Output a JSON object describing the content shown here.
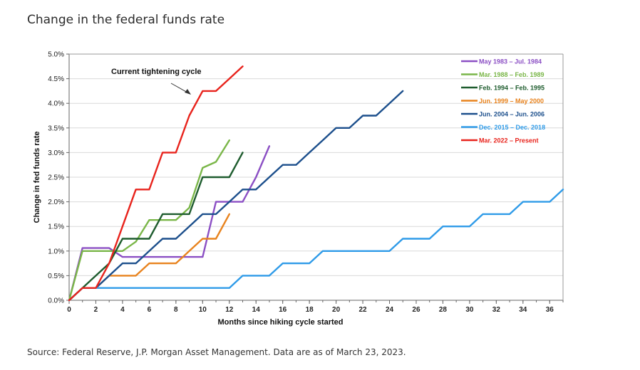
{
  "page": {
    "title": "Change in the federal funds rate",
    "source": "Source: Federal Reserve, J.P. Morgan Asset Management. Data are as of March 23, 2023."
  },
  "chart_data": {
    "type": "line",
    "xlabel": "Months since hiking cycle started",
    "ylabel": "Change in fed funds rate",
    "xlim": [
      0,
      37
    ],
    "ylim": [
      0,
      5
    ],
    "xticks": [
      0,
      2,
      4,
      6,
      8,
      10,
      12,
      14,
      16,
      18,
      20,
      22,
      24,
      26,
      28,
      30,
      32,
      34,
      36
    ],
    "yticks": [
      "0.0%",
      "0.5%",
      "1.0%",
      "1.5%",
      "2.0%",
      "2.5%",
      "3.0%",
      "3.5%",
      "4.0%",
      "4.5%",
      "5.0%"
    ],
    "grid": "horizontal",
    "legend_position": "top-right",
    "annotation": {
      "text": "Current tightening cycle",
      "points_to_series": "Mar. 2022 – Present"
    },
    "series": [
      {
        "name": "May 1983 – Jul. 1984",
        "color": "#8b4fc4",
        "x": [
          0,
          1,
          2,
          3,
          4,
          5,
          6,
          7,
          8,
          9,
          10,
          11,
          12,
          13,
          14,
          15
        ],
        "y": [
          0,
          1.06,
          1.06,
          1.06,
          0.88,
          0.88,
          0.88,
          0.88,
          0.88,
          0.88,
          0.88,
          2.0,
          2.0,
          2.0,
          2.5,
          3.13
        ]
      },
      {
        "name": "Mar. 1988 – Feb. 1989",
        "color": "#7ab648",
        "x": [
          0,
          1,
          2,
          3,
          4,
          5,
          6,
          7,
          8,
          9,
          10,
          11,
          12
        ],
        "y": [
          0,
          1.0,
          1.0,
          1.0,
          1.0,
          1.19,
          1.63,
          1.63,
          1.63,
          1.88,
          2.69,
          2.81,
          3.25
        ]
      },
      {
        "name": "Feb. 1994 – Feb. 1995",
        "color": "#1e5c2e",
        "x": [
          0,
          1,
          2,
          3,
          4,
          5,
          6,
          7,
          8,
          9,
          10,
          11,
          12,
          13
        ],
        "y": [
          0,
          0.25,
          0.5,
          0.75,
          1.25,
          1.25,
          1.25,
          1.75,
          1.75,
          1.75,
          2.5,
          2.5,
          2.5,
          3.0
        ]
      },
      {
        "name": "Jun. 1999 – May 2000",
        "color": "#e8831e",
        "x": [
          0,
          1,
          2,
          3,
          4,
          5,
          6,
          7,
          8,
          9,
          10,
          11,
          12
        ],
        "y": [
          0,
          0.25,
          0.25,
          0.5,
          0.5,
          0.5,
          0.75,
          0.75,
          0.75,
          1.0,
          1.25,
          1.25,
          1.75
        ]
      },
      {
        "name": "Jun. 2004 – Jun. 2006",
        "color": "#1c4f8c",
        "x": [
          0,
          1,
          2,
          3,
          4,
          5,
          6,
          7,
          8,
          9,
          10,
          11,
          12,
          13,
          14,
          15,
          16,
          17,
          18,
          19,
          20,
          21,
          22,
          23,
          24,
          25
        ],
        "y": [
          0,
          0.25,
          0.25,
          0.5,
          0.75,
          0.75,
          1.0,
          1.25,
          1.25,
          1.5,
          1.75,
          1.75,
          2.0,
          2.25,
          2.25,
          2.5,
          2.75,
          2.75,
          3.0,
          3.25,
          3.5,
          3.5,
          3.75,
          3.75,
          4.0,
          4.25
        ]
      },
      {
        "name": "Dec. 2015 – Dec. 2018",
        "color": "#2f9be8",
        "x": [
          0,
          1,
          2,
          3,
          4,
          5,
          6,
          7,
          8,
          9,
          10,
          11,
          12,
          13,
          14,
          15,
          16,
          17,
          18,
          19,
          20,
          21,
          22,
          23,
          24,
          25,
          26,
          27,
          28,
          29,
          30,
          31,
          32,
          33,
          34,
          35,
          36,
          37
        ],
        "y": [
          0,
          0.25,
          0.25,
          0.25,
          0.25,
          0.25,
          0.25,
          0.25,
          0.25,
          0.25,
          0.25,
          0.25,
          0.25,
          0.5,
          0.5,
          0.5,
          0.75,
          0.75,
          0.75,
          1.0,
          1.0,
          1.0,
          1.0,
          1.0,
          1.0,
          1.25,
          1.25,
          1.25,
          1.5,
          1.5,
          1.5,
          1.75,
          1.75,
          1.75,
          2.0,
          2.0,
          2.0,
          2.25
        ]
      },
      {
        "name": "Mar. 2022 – Present",
        "color": "#e8231c",
        "x": [
          0,
          1,
          2,
          3,
          4,
          5,
          6,
          7,
          8,
          9,
          10,
          11,
          12,
          13
        ],
        "y": [
          0,
          0.25,
          0.25,
          0.75,
          1.5,
          2.25,
          2.25,
          3.0,
          3.0,
          3.75,
          4.25,
          4.25,
          4.5,
          4.75
        ]
      }
    ]
  }
}
